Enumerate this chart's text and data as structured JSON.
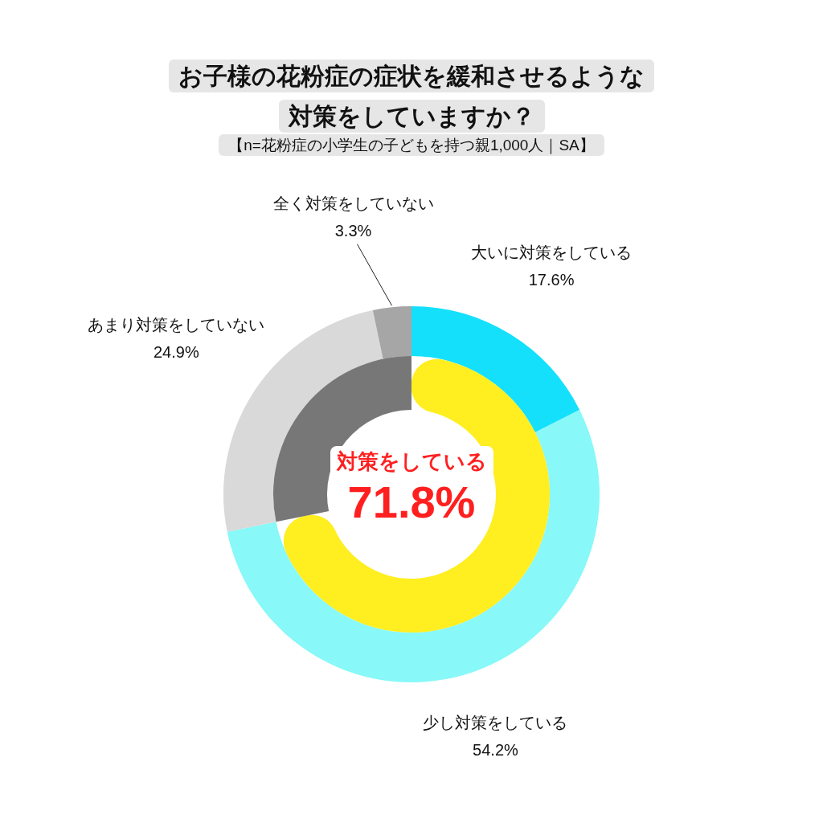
{
  "chart_data": [
    {
      "type": "donut",
      "title": "お子様の花粉症の症状を緩和させるような対策をしていますか？",
      "subtitle": "【n=花粉症の小学生の子どもを持つ親1,000人｜SA】",
      "categories": [
        "大いに対策をしている",
        "少し対策をしている",
        "あまり対策をしていない",
        "全く対策をしていない"
      ],
      "values": [
        17.6,
        54.2,
        24.9,
        3.3
      ],
      "colors": [
        "#14e0fc",
        "#88f8f8",
        "#d9d9d9",
        "#a6a6a6"
      ],
      "value_labels": [
        "17.6%",
        "54.2%",
        "24.9%",
        "3.3%"
      ],
      "legend": false
    },
    {
      "type": "donut",
      "categories": [
        "対策をしている",
        null
      ],
      "values": [
        71.8,
        28.2
      ],
      "colors": [
        "#ffee20",
        "#777777"
      ],
      "value_labels": [
        "71.8%",
        null
      ],
      "legend": false
    }
  ]
}
